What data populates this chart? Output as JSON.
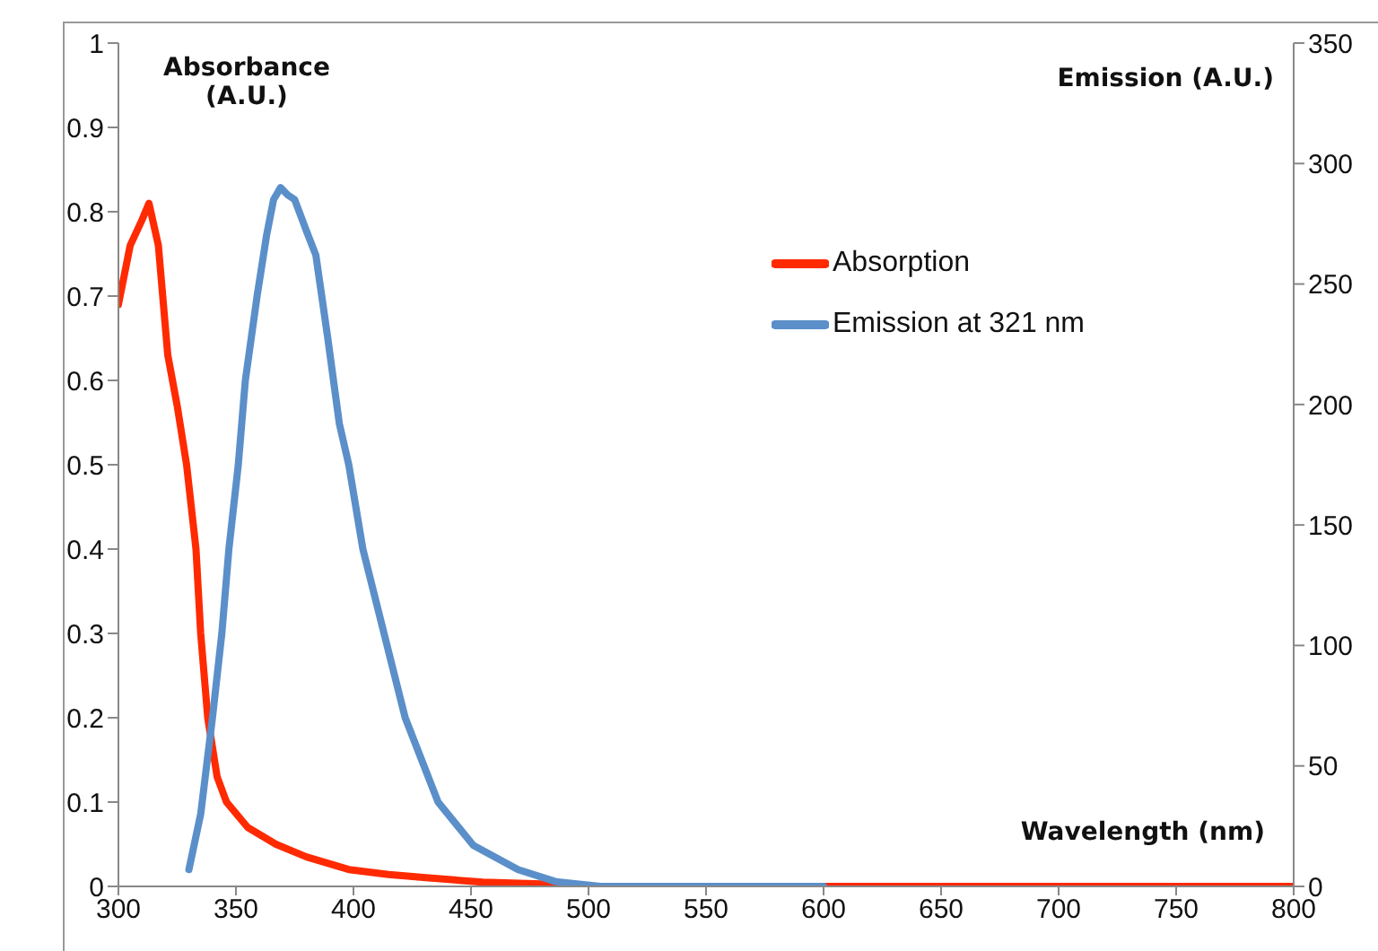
{
  "chart_data": {
    "type": "line",
    "xlabel": "Wavelength (nm)",
    "ylabel": "Absorbance (A.U.)",
    "y2label": "Emission (A.U.)",
    "xlim": [
      300,
      800
    ],
    "xticks": [
      300,
      350,
      400,
      450,
      500,
      550,
      600,
      650,
      700,
      750,
      800
    ],
    "ylim": [
      0,
      1
    ],
    "yticks": [
      0,
      0.1,
      0.2,
      0.3,
      0.4,
      0.5,
      0.6,
      0.7,
      0.8,
      0.9,
      1
    ],
    "y2lim": [
      0,
      350
    ],
    "y2ticks": [
      0,
      50,
      100,
      150,
      200,
      250,
      300,
      350
    ],
    "grid": false,
    "legend": "top right",
    "marker": "none",
    "line_style": "solid",
    "series": [
      {
        "name": "Absorption",
        "color": "#ff2a00",
        "x": [
          300,
          305,
          310,
          313,
          317,
          321,
          325,
          329,
          333,
          335,
          338,
          342,
          346,
          355,
          367,
          380,
          398,
          415,
          432,
          455,
          480,
          500,
          550,
          600,
          700,
          800
        ],
        "values": [
          0.69,
          0.76,
          0.79,
          0.81,
          0.76,
          0.63,
          0.57,
          0.5,
          0.4,
          0.3,
          0.2,
          0.13,
          0.1,
          0.07,
          0.05,
          0.035,
          0.02,
          0.014,
          0.01,
          0.005,
          0.003,
          0,
          0,
          0,
          0,
          0
        ]
      },
      {
        "name": "Emission at 321 nm",
        "color": "#5b8fc9",
        "axis": "y2",
        "x": [
          330,
          335,
          340,
          344,
          347,
          351,
          354,
          359,
          363,
          366,
          369,
          372,
          375,
          380,
          384,
          389,
          394,
          398,
          404,
          413,
          422,
          436,
          451,
          470,
          486,
          505,
          550,
          600
        ],
        "values": [
          7,
          30,
          70,
          105,
          140,
          175,
          210,
          245,
          270,
          285,
          290,
          287,
          285,
          272,
          262,
          228,
          192,
          175,
          140,
          105,
          70,
          35,
          17,
          7,
          2,
          0,
          0,
          0
        ]
      }
    ]
  }
}
